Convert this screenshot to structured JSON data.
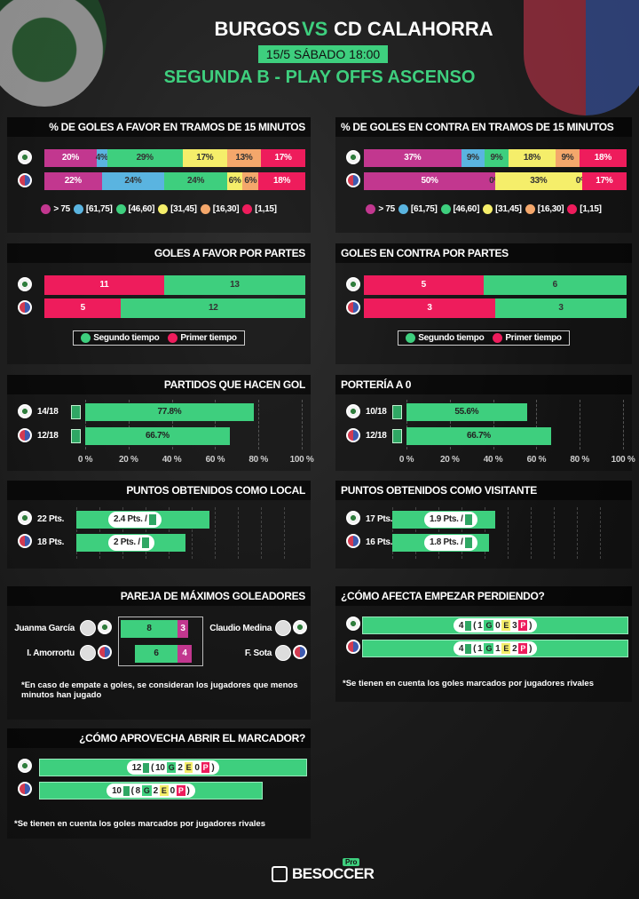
{
  "header": {
    "home": "BURGOS",
    "vs": "VS",
    "away": "CD CALAHORRA",
    "date": "15/5 SÁBADO 18:00",
    "competition": "SEGUNDA B - PLAY OFFS ASCENSO"
  },
  "goals_for_intervals": {
    "title": "% DE GOLES A FAVOR EN TRAMOS DE 15 MINUTOS",
    "series": [
      {
        "name": "> 75",
        "color": "#c2378f",
        "values": [
          20,
          22
        ],
        "value_labels": [
          "20%",
          "22%"
        ]
      },
      {
        "name": "[61,75]",
        "color": "#5ab4e0",
        "values": [
          4,
          24
        ],
        "value_labels": [
          "4%",
          "24%"
        ]
      },
      {
        "name": "[46,60]",
        "color": "#3ecf7e",
        "values": [
          29,
          24
        ],
        "value_labels": [
          "29%",
          "24%"
        ]
      },
      {
        "name": "[31,45]",
        "color": "#f5ee6a",
        "values": [
          17,
          6
        ],
        "value_labels": [
          "17%",
          "6%"
        ]
      },
      {
        "name": "[16,30]",
        "color": "#f4a76b",
        "values": [
          13,
          6
        ],
        "value_labels": [
          "13%",
          "6%"
        ]
      },
      {
        "name": "[1,15]",
        "color": "#ee1c5c",
        "values": [
          17,
          18
        ],
        "value_labels": [
          "17%",
          "18%"
        ]
      }
    ]
  },
  "goals_against_intervals": {
    "title": "% DE GOLES EN CONTRA EN TRAMOS DE 15 MINUTOS",
    "series": [
      {
        "name": "> 75",
        "color": "#c2378f",
        "values": [
          37,
          50
        ],
        "value_labels": [
          "37%",
          "50%"
        ]
      },
      {
        "name": "[61,75]",
        "color": "#5ab4e0",
        "values": [
          9,
          0
        ],
        "value_labels": [
          "9%",
          null
        ]
      },
      {
        "name": "[46,60]",
        "color": "#3ecf7e",
        "values": [
          9,
          0
        ],
        "value_labels": [
          "9%",
          "0%"
        ]
      },
      {
        "name": "[31,45]",
        "color": "#f5ee6a",
        "values": [
          18,
          33
        ],
        "value_labels": [
          "18%",
          "33%"
        ]
      },
      {
        "name": "[16,30]",
        "color": "#f4a76b",
        "values": [
          9,
          0
        ],
        "value_labels": [
          "9%",
          "0%"
        ]
      },
      {
        "name": "[1,15]",
        "color": "#ee1c5c",
        "values": [
          18,
          17
        ],
        "value_labels": [
          "18%",
          "17%"
        ]
      }
    ]
  },
  "goals_for_halves": {
    "title": "GOLES A FAVOR POR PARTES",
    "series": [
      {
        "name": "Primer tiempo",
        "color": "#ee1c5c",
        "values": [
          11,
          5
        ]
      },
      {
        "name": "Segundo tiempo",
        "color": "#3ecf7e",
        "values": [
          13,
          12
        ]
      }
    ]
  },
  "goals_against_halves": {
    "title": "GOLES EN CONTRA POR PARTES",
    "series": [
      {
        "name": "Primer tiempo",
        "color": "#ee1c5c",
        "values": [
          5,
          3
        ]
      },
      {
        "name": "Segundo tiempo",
        "color": "#3ecf7e",
        "values": [
          6,
          3
        ]
      }
    ]
  },
  "scoring_matches": {
    "title": "PARTIDOS QUE HACEN GOL",
    "matches": [
      "14/18",
      "12/18"
    ],
    "values": [
      77.8,
      66.7
    ],
    "value_labels": [
      "77.8%",
      "66.7%"
    ],
    "color": "#3ecf7e",
    "xlim": [
      0,
      100
    ],
    "xticks": [
      {
        "value": 0,
        "label": "0 %"
      },
      {
        "value": 20,
        "label": "20 %"
      },
      {
        "value": 40,
        "label": "40 %"
      },
      {
        "value": 60,
        "label": "60 %"
      },
      {
        "value": 80,
        "label": "80 %"
      },
      {
        "value": 100,
        "label": "100 %"
      }
    ]
  },
  "clean_sheets": {
    "title": "PORTERÍA A 0",
    "matches": [
      "10/18",
      "12/18"
    ],
    "values": [
      55.6,
      66.7
    ],
    "value_labels": [
      "55.6%",
      "66.7%"
    ],
    "color": "#3ecf7e",
    "xlim": [
      0,
      100
    ],
    "xticks": [
      {
        "value": 0,
        "label": "0 %"
      },
      {
        "value": 20,
        "label": "20 %"
      },
      {
        "value": 40,
        "label": "40 %"
      },
      {
        "value": 60,
        "label": "60 %"
      },
      {
        "value": 80,
        "label": "80 %"
      },
      {
        "value": 100,
        "label": "100 %"
      }
    ]
  },
  "home_points": {
    "title": "PUNTOS OBTENIDOS COMO LOCAL",
    "values": [
      22,
      18
    ],
    "value_labels": [
      "22 Pts.",
      "18 Pts."
    ],
    "per_match": [
      2.4,
      2
    ],
    "per_match_labels": [
      "2.4 Pts. /",
      "2 Pts. /"
    ],
    "color": "#3ecf7e"
  },
  "away_points": {
    "title": "PUNTOS OBTENIDOS COMO VISITANTE",
    "values": [
      17,
      16
    ],
    "value_labels": [
      "17 Pts.",
      "16 Pts."
    ],
    "per_match": [
      1.9,
      1.8
    ],
    "per_match_labels": [
      "1.9 Pts. /",
      "1.8 Pts. /"
    ],
    "color": "#3ecf7e"
  },
  "top_scorers": {
    "title": "PAREJA DE MÁXIMOS GOLEADORES",
    "note": "*En caso de empate a goles, se consideran los jugadores que menos minutos han jugado",
    "rows": [
      {
        "home_player": "Juanma García",
        "away_player": "Claudio Medina",
        "home_goals": 8,
        "away_goals": 3
      },
      {
        "home_player": "I. Amorrortu",
        "away_player": "F. Sota",
        "home_goals": 6,
        "away_goals": 4
      }
    ]
  },
  "start_losing": {
    "title": "¿CÓMO AFECTA EMPEZAR PERDIENDO?",
    "note": "*Se tienen en cuenta los goles marcados por jugadores rivales",
    "letters": [
      "G",
      "E",
      "P"
    ],
    "brackets": [
      "(",
      ")"
    ],
    "rows": [
      {
        "total": 4,
        "won": 1,
        "drawn": 0,
        "lost": 3
      },
      {
        "total": 4,
        "won": 1,
        "drawn": 1,
        "lost": 2
      }
    ]
  },
  "open_score": {
    "title": "¿CÓMO APROVECHA ABRIR EL MARCADOR?",
    "note": "*Se tienen en cuenta los goles marcados por jugadores rivales",
    "letters": [
      "G",
      "E",
      "P"
    ],
    "brackets": [
      "(",
      ")"
    ],
    "rows": [
      {
        "total": 12,
        "won": 10,
        "drawn": 2,
        "lost": 0
      },
      {
        "total": 10,
        "won": 8,
        "drawn": 2,
        "lost": 0
      }
    ]
  },
  "footer": {
    "brand": "BESOCCER",
    "badge": "Pro"
  }
}
